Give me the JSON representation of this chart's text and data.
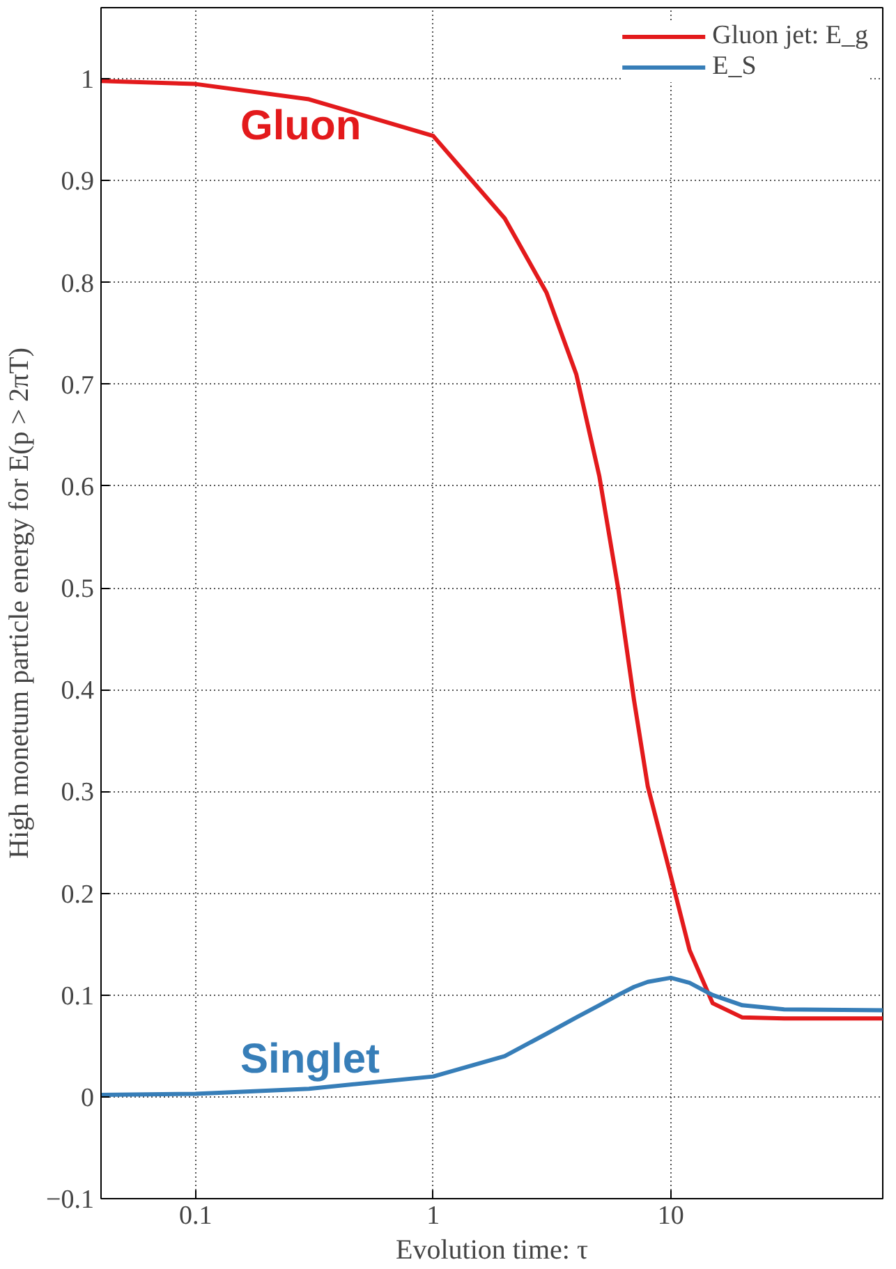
{
  "chart_data": {
    "type": "line",
    "xlabel": "Evolution time: τ",
    "ylabel": "High monetum particle energy for E(p > 2πT)",
    "log": "x",
    "xlim": [
      0.04,
      78
    ],
    "ylim": [
      -0.1,
      1.07
    ],
    "xticks": [
      0.1,
      1,
      10
    ],
    "yticks": [
      {
        "value": -0.1,
        "label": "−0.1"
      },
      0,
      0.1,
      0.2,
      0.3,
      0.4,
      0.5,
      0.6,
      0.7,
      0.8,
      0.9,
      1
    ],
    "grid": true,
    "legend": "top right",
    "line_style": "solid",
    "marker": "none",
    "x": [
      0.04,
      0.1,
      0.3,
      1,
      2,
      3,
      4,
      5,
      6,
      7,
      8,
      10,
      12,
      15,
      20,
      30,
      78
    ],
    "series": [
      {
        "name": "Gluon jet: E_g",
        "color": "#e31a1c",
        "values": [
          0.998,
          0.995,
          0.98,
          0.944,
          0.863,
          0.79,
          0.71,
          0.61,
          0.5,
          0.39,
          0.305,
          0.217,
          0.144,
          0.092,
          0.078,
          0.077,
          0.077
        ]
      },
      {
        "name": "E_S",
        "color": "#377eb8",
        "values": [
          0.002,
          0.003,
          0.008,
          0.02,
          0.04,
          0.062,
          0.078,
          0.09,
          0.1,
          0.108,
          0.113,
          0.117,
          0.112,
          0.1,
          0.09,
          0.086,
          0.085
        ]
      }
    ],
    "annotations": [
      "Gluon",
      "Singlet"
    ]
  }
}
